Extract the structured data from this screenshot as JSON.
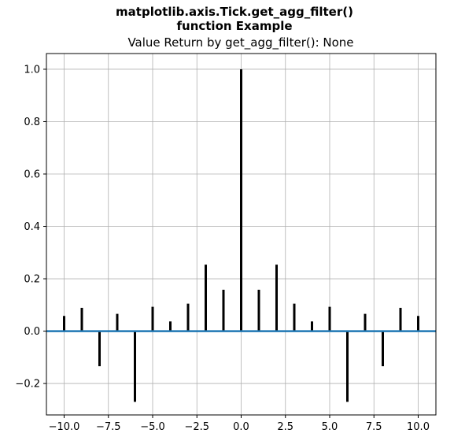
{
  "figure": {
    "suptitle_line1": "matplotlib.axis.Tick.get_agg_filter()",
    "suptitle_line2": "function Example"
  },
  "chart_data": {
    "type": "stem",
    "title": "Value Return by get_agg_filter(): None",
    "xlabel": "",
    "ylabel": "",
    "grid": true,
    "xlim": [
      -11.0,
      11.0
    ],
    "ylim": [
      -0.32,
      1.06
    ],
    "xticks": [
      -10,
      -7.5,
      -5,
      -2.5,
      0,
      2.5,
      5,
      7.5,
      10
    ],
    "xtick_labels": [
      "−10.0",
      "−7.5",
      "−5.0",
      "−2.5",
      "0.0",
      "2.5",
      "5.0",
      "7.5",
      "10.0"
    ],
    "yticks": [
      -0.2,
      0.0,
      0.2,
      0.4,
      0.6,
      0.8,
      1.0
    ],
    "ytick_labels": [
      "−0.2",
      "0.0",
      "0.2",
      "0.4",
      "0.6",
      "0.8",
      "1.0"
    ],
    "x": [
      -10,
      -9,
      -8,
      -7,
      -6,
      -5,
      -4,
      -3,
      -2,
      -1,
      0,
      1,
      2,
      3,
      4,
      5,
      6,
      7,
      8,
      9,
      10
    ],
    "y": [
      0.058,
      0.089,
      -0.134,
      0.066,
      -0.27,
      0.093,
      0.037,
      0.105,
      0.254,
      0.158,
      1.0,
      0.158,
      0.254,
      0.105,
      0.037,
      0.093,
      -0.27,
      0.066,
      -0.134,
      0.089,
      0.058
    ],
    "stem_color": "#000000",
    "baseline_color": "#1f77b4",
    "grid_color": "#b0b0b0"
  }
}
